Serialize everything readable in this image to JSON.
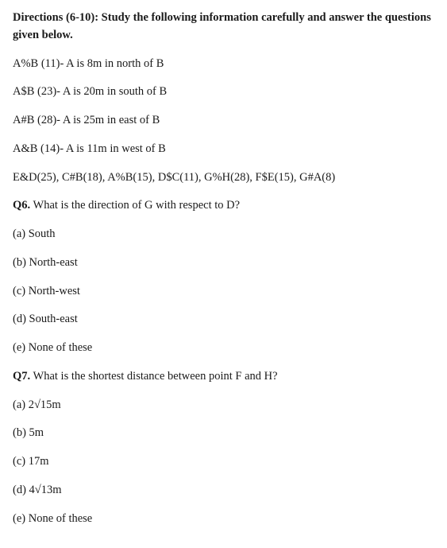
{
  "directions": "Directions (6-10): Study the following information carefully and answer the questions given below.",
  "rules": [
    "A%B (11)- A is 8m in north of B",
    "A$B (23)- A is 20m in south of B",
    "A#B (28)- A is 25m in east of B",
    "A&B (14)- A is 11m in west of B"
  ],
  "sequence": "E&D(25), C#B(18), A%B(15), D$C(11), G%H(28), F$E(15), G#A(8)",
  "q6": {
    "label": "Q6.",
    "text": " What is the direction of G with respect to D?",
    "options": {
      "a": "(a) South",
      "b": "(b) North-east",
      "c": "(c) North-west",
      "d": "(d) South-east",
      "e": "(e) None of these"
    }
  },
  "q7": {
    "label": "Q7.",
    "text": " What is the shortest distance between point F and H?",
    "options": {
      "a": "(a) 2√15m",
      "b": "(b) 5m",
      "c": "(c) 17m",
      "d": "(d) 4√13m",
      "e": "(e) None of these"
    }
  }
}
